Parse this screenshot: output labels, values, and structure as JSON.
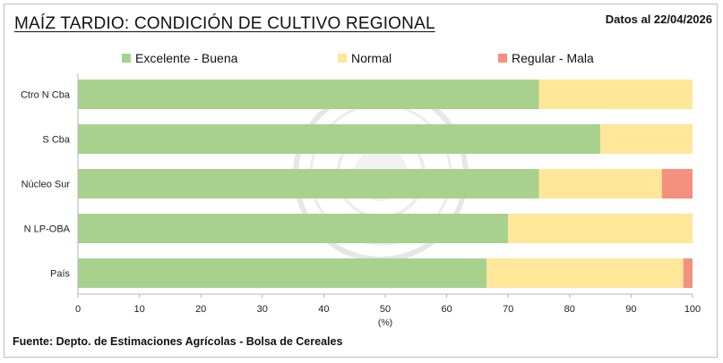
{
  "header": {
    "title": "MAÍZ TARDIO: CONDICIÓN DE CULTIVO REGIONAL",
    "date": "Datos al 22/04/2026"
  },
  "footer": {
    "source": "Fuente: Depto. de Estimaciones Agrícolas - Bolsa de Cereales"
  },
  "colors": {
    "excelente": "#a9d18e",
    "normal": "#ffe699",
    "regular": "#f4917e"
  },
  "chart_data": {
    "type": "bar",
    "orientation": "horizontal",
    "stacked": true,
    "title": "MAÍZ TARDIO: CONDICIÓN DE CULTIVO REGIONAL",
    "xlabel": "(%)",
    "ylabel": "",
    "xlim": [
      0,
      100
    ],
    "xticks": [
      0,
      10,
      20,
      30,
      40,
      50,
      60,
      70,
      80,
      90,
      100
    ],
    "categories": [
      "Ctro N Cba",
      "S Cba",
      "Núcleo Sur",
      "N LP-OBA",
      "País"
    ],
    "series": [
      {
        "name": "Excelente - Buena",
        "values": [
          75,
          85,
          75,
          70,
          66.5
        ]
      },
      {
        "name": "Normal",
        "values": [
          25,
          15,
          20,
          30,
          32
        ]
      },
      {
        "name": "Regular - Mala",
        "values": [
          0,
          0,
          5,
          0,
          1.5
        ]
      }
    ],
    "legend_position": "top",
    "grid": false
  }
}
